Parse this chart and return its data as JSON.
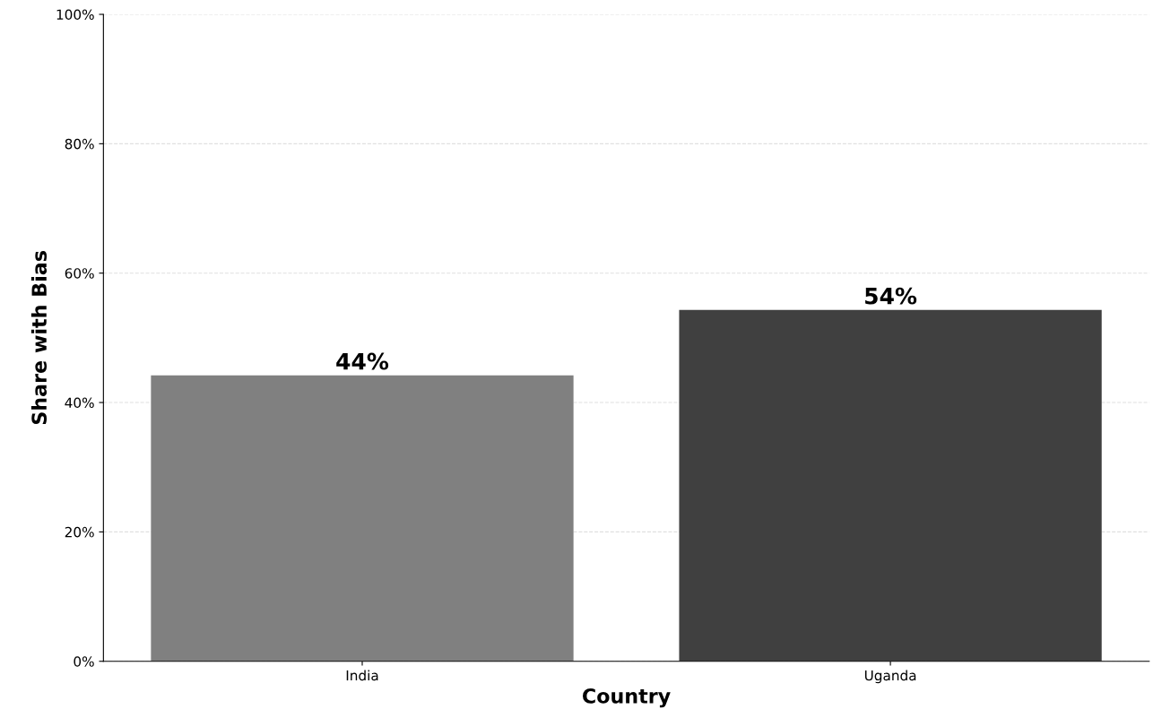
{
  "chart_data": {
    "type": "bar",
    "xlabel": "Country",
    "ylabel": "Share with Bias",
    "categories": [
      "India",
      "Uganda"
    ],
    "values": [
      44.2,
      54.3
    ],
    "colors": [
      "#808080",
      "#404040"
    ],
    "value_labels": [
      "44%",
      "54%"
    ],
    "ylim": [
      0,
      100
    ],
    "yticks": [
      {
        "value": 0,
        "label": "0%"
      },
      {
        "value": 20,
        "label": "20%"
      },
      {
        "value": 40,
        "label": "40%"
      },
      {
        "value": 60,
        "label": "60%"
      },
      {
        "value": 80,
        "label": "80%"
      },
      {
        "value": 100,
        "label": "100%"
      }
    ],
    "grid": "y"
  }
}
